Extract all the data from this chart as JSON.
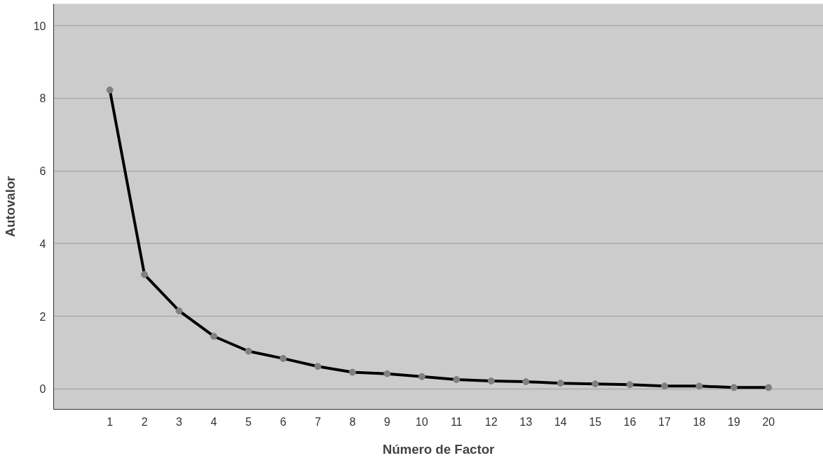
{
  "chart_data": {
    "type": "line",
    "xlabel": "Número de Factor",
    "ylabel": "Autovalor",
    "x": [
      1,
      2,
      3,
      4,
      5,
      6,
      7,
      8,
      9,
      10,
      11,
      12,
      13,
      14,
      15,
      16,
      17,
      18,
      19,
      20
    ],
    "series": [
      {
        "color": "#000000",
        "values": [
          8.23,
          3.15,
          2.15,
          1.45,
          1.04,
          0.84,
          0.62,
          0.46,
          0.42,
          0.34,
          0.26,
          0.22,
          0.2,
          0.16,
          0.14,
          0.12,
          0.08,
          0.08,
          0.04,
          0.04
        ]
      }
    ],
    "xlim": [
      -0.62,
      21.58
    ],
    "ylim": [
      -0.56,
      10.6
    ],
    "xticks": [
      1,
      2,
      3,
      4,
      5,
      6,
      7,
      8,
      9,
      10,
      11,
      12,
      13,
      14,
      15,
      16,
      17,
      18,
      19,
      20
    ],
    "yticks": [
      0,
      2,
      4,
      6,
      8,
      10
    ],
    "grid": "y",
    "marker": "circle",
    "line_style": "solid"
  }
}
